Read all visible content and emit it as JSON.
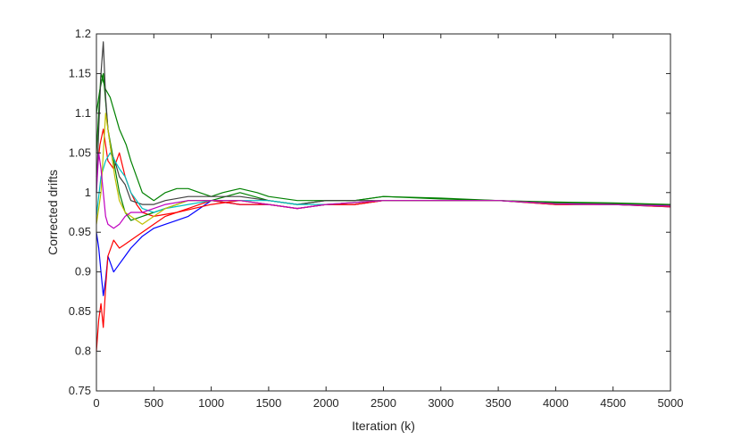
{
  "chart_data": {
    "type": "line",
    "title": "",
    "xlabel": "Iteration (k)",
    "ylabel": "Corrected drifts",
    "xlim": [
      0,
      5000
    ],
    "ylim": [
      0.75,
      1.2
    ],
    "xticks": [
      0,
      500,
      1000,
      1500,
      2000,
      2500,
      3000,
      3500,
      4000,
      4500,
      5000
    ],
    "yticks": [
      0.75,
      0.8,
      0.85,
      0.9,
      0.95,
      1,
      1.05,
      1.1,
      1.15,
      1.2
    ],
    "xtick_labels": [
      "0",
      "500",
      "1000",
      "1500",
      "2000",
      "2500",
      "3000",
      "3500",
      "4000",
      "4500",
      "5000"
    ],
    "ytick_labels": [
      "0.75",
      "0.8",
      "0.85",
      "0.9",
      "0.95",
      "1",
      "1.05",
      "1.1",
      "1.15",
      "1.2"
    ],
    "grid": false,
    "legend": "none",
    "series": [
      {
        "color": "#0000ff",
        "x": [
          0,
          20,
          40,
          60,
          80,
          100,
          150,
          200,
          250,
          300,
          400,
          500,
          600,
          700,
          800,
          900,
          1000,
          1250,
          1500,
          1750,
          2000,
          2250,
          2500,
          3000,
          3500,
          4000,
          4500,
          5000
        ],
        "y": [
          0.95,
          0.93,
          0.9,
          0.87,
          0.89,
          0.92,
          0.9,
          0.91,
          0.92,
          0.93,
          0.945,
          0.955,
          0.96,
          0.965,
          0.97,
          0.98,
          0.99,
          0.985,
          0.985,
          0.98,
          0.985,
          0.985,
          0.99,
          0.99,
          0.99,
          0.985,
          0.985,
          0.982
        ]
      },
      {
        "color": "#ff0000",
        "x": [
          0,
          20,
          40,
          60,
          80,
          100,
          150,
          200,
          250,
          300,
          400,
          500,
          600,
          700,
          800,
          900,
          1000,
          1250,
          1500,
          1750,
          2000,
          2250,
          2500,
          3000,
          3500,
          4000,
          4500,
          5000
        ],
        "y": [
          0.8,
          0.84,
          0.86,
          0.83,
          0.88,
          0.92,
          0.94,
          0.93,
          0.935,
          0.94,
          0.95,
          0.96,
          0.97,
          0.975,
          0.98,
          0.985,
          0.99,
          0.985,
          0.985,
          0.98,
          0.985,
          0.985,
          0.99,
          0.99,
          0.99,
          0.985,
          0.985,
          0.982
        ]
      },
      {
        "color": "#ff0000",
        "x": [
          0,
          30,
          60,
          100,
          150,
          200,
          250,
          300,
          350,
          400,
          500,
          700,
          1000,
          1250,
          1500,
          1750,
          2000,
          2250,
          2500,
          3000,
          3500,
          4000,
          4500,
          5000
        ],
        "y": [
          1.02,
          1.06,
          1.08,
          1.04,
          1.03,
          1.05,
          1.02,
          1.0,
          0.985,
          0.975,
          0.97,
          0.975,
          0.985,
          0.99,
          0.985,
          0.98,
          0.985,
          0.985,
          0.99,
          0.99,
          0.99,
          0.986,
          0.985,
          0.983
        ]
      },
      {
        "color": "#008000",
        "x": [
          0,
          40,
          80,
          120,
          160,
          200,
          260,
          300,
          400,
          500,
          600,
          700,
          800,
          900,
          1000,
          1100,
          1250,
          1400,
          1500,
          1750,
          2000,
          2250,
          2500,
          3000,
          3500,
          4000,
          4500,
          5000
        ],
        "y": [
          1.05,
          1.15,
          1.13,
          1.12,
          1.1,
          1.08,
          1.06,
          1.04,
          1.0,
          0.99,
          1.0,
          1.005,
          1.005,
          1.0,
          0.995,
          1.0,
          1.005,
          1.0,
          0.995,
          0.99,
          0.99,
          0.99,
          0.995,
          0.993,
          0.99,
          0.988,
          0.987,
          0.985
        ]
      },
      {
        "color": "#008000",
        "x": [
          0,
          30,
          60,
          100,
          150,
          200,
          250,
          300,
          400,
          500,
          600,
          800,
          1000,
          1250,
          1500,
          1750,
          2000,
          2250,
          2500,
          3000,
          3500,
          4000,
          4500,
          5000
        ],
        "y": [
          1.1,
          1.13,
          1.15,
          1.08,
          1.04,
          1.0,
          0.975,
          0.965,
          0.97,
          0.975,
          0.98,
          0.99,
          0.99,
          1.0,
          0.99,
          0.985,
          0.99,
          0.99,
          0.995,
          0.992,
          0.99,
          0.987,
          0.986,
          0.984
        ]
      },
      {
        "color": "#404040",
        "x": [
          0,
          20,
          40,
          60,
          80,
          100,
          130,
          160,
          200,
          250,
          300,
          400,
          500,
          600,
          800,
          1000,
          1250,
          1500,
          1750,
          2000,
          2500,
          3000,
          3500,
          4000,
          4500,
          5000
        ],
        "y": [
          1.0,
          1.08,
          1.15,
          1.19,
          1.12,
          1.08,
          1.05,
          1.04,
          1.02,
          1.01,
          0.99,
          0.985,
          0.985,
          0.99,
          0.995,
          0.995,
          0.995,
          0.99,
          0.985,
          0.99,
          0.99,
          0.99,
          0.99,
          0.986,
          0.985,
          0.984
        ]
      },
      {
        "color": "#00bfbf",
        "x": [
          0,
          40,
          80,
          120,
          160,
          200,
          250,
          300,
          400,
          500,
          600,
          800,
          1000,
          1250,
          1500,
          1750,
          2000,
          2500,
          3000,
          3500,
          4000,
          4500,
          5000
        ],
        "y": [
          0.97,
          1.02,
          1.04,
          1.05,
          1.04,
          1.03,
          1.02,
          1.0,
          0.98,
          0.975,
          0.98,
          0.985,
          0.99,
          0.99,
          0.99,
          0.985,
          0.985,
          0.99,
          0.99,
          0.99,
          0.986,
          0.985,
          0.983
        ]
      },
      {
        "color": "#bfbf00",
        "x": [
          0,
          40,
          80,
          120,
          160,
          200,
          250,
          300,
          350,
          400,
          500,
          600,
          800,
          1000,
          1250,
          1500,
          1750,
          2000,
          2500,
          3000,
          3500,
          4000,
          4500,
          5000
        ],
        "y": [
          0.96,
          1.0,
          1.1,
          1.06,
          1.02,
          0.99,
          0.975,
          0.97,
          0.965,
          0.96,
          0.97,
          0.98,
          0.99,
          0.99,
          0.99,
          0.985,
          0.98,
          0.985,
          0.99,
          0.99,
          0.99,
          0.986,
          0.985,
          0.983
        ]
      },
      {
        "color": "#bf00bf",
        "x": [
          0,
          20,
          40,
          60,
          80,
          100,
          150,
          200,
          250,
          300,
          400,
          500,
          600,
          800,
          1000,
          1250,
          1500,
          1750,
          2000,
          2500,
          3000,
          3500,
          4000,
          4500,
          5000
        ],
        "y": [
          1.0,
          1.05,
          1.03,
          1.0,
          0.97,
          0.96,
          0.955,
          0.96,
          0.97,
          0.975,
          0.975,
          0.98,
          0.985,
          0.99,
          0.99,
          0.99,
          0.985,
          0.98,
          0.985,
          0.99,
          0.99,
          0.99,
          0.986,
          0.985,
          0.983
        ]
      }
    ]
  }
}
